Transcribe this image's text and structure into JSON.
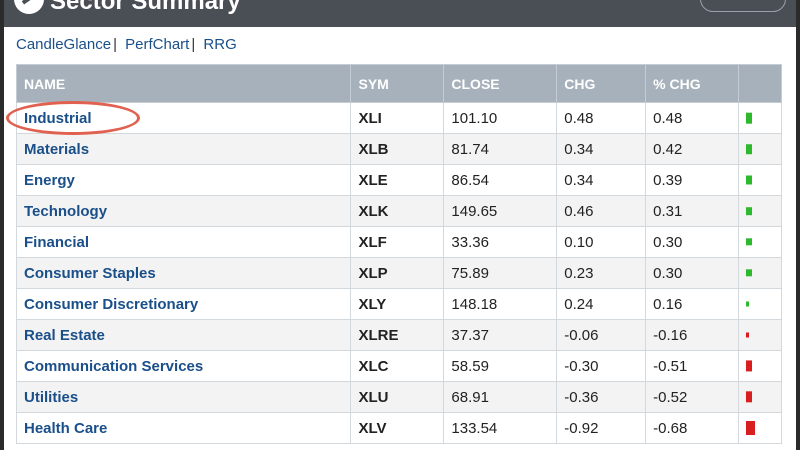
{
  "header": {
    "title": "Sector Summary"
  },
  "links": [
    "CandleGlance",
    "PerfChart",
    "RRG"
  ],
  "table": {
    "columns": [
      "NAME",
      "SYM",
      "CLOSE",
      "CHG",
      "% CHG",
      ""
    ],
    "rows": [
      {
        "name": "Industrial",
        "sym": "XLI",
        "close": "101.10",
        "chg": "0.48",
        "pct": "0.48"
      },
      {
        "name": "Materials",
        "sym": "XLB",
        "close": "81.74",
        "chg": "0.34",
        "pct": "0.42"
      },
      {
        "name": "Energy",
        "sym": "XLE",
        "close": "86.54",
        "chg": "0.34",
        "pct": "0.39"
      },
      {
        "name": "Technology",
        "sym": "XLK",
        "close": "149.65",
        "chg": "0.46",
        "pct": "0.31"
      },
      {
        "name": "Financial",
        "sym": "XLF",
        "close": "33.36",
        "chg": "0.10",
        "pct": "0.30"
      },
      {
        "name": "Consumer Staples",
        "sym": "XLP",
        "close": "75.89",
        "chg": "0.23",
        "pct": "0.30"
      },
      {
        "name": "Consumer Discretionary",
        "sym": "XLY",
        "close": "148.18",
        "chg": "0.24",
        "pct": "0.16"
      },
      {
        "name": "Real Estate",
        "sym": "XLRE",
        "close": "37.37",
        "chg": "-0.06",
        "pct": "-0.16"
      },
      {
        "name": "Communication Services",
        "sym": "XLC",
        "close": "58.59",
        "chg": "-0.30",
        "pct": "-0.51"
      },
      {
        "name": "Utilities",
        "sym": "XLU",
        "close": "68.91",
        "chg": "-0.36",
        "pct": "-0.52"
      },
      {
        "name": "Health Care",
        "sym": "XLV",
        "close": "133.54",
        "chg": "-0.92",
        "pct": "-0.68"
      }
    ]
  },
  "colors": {
    "positive": "#2db82d",
    "negative": "#d81e1e",
    "highlight": "#e0614f"
  }
}
